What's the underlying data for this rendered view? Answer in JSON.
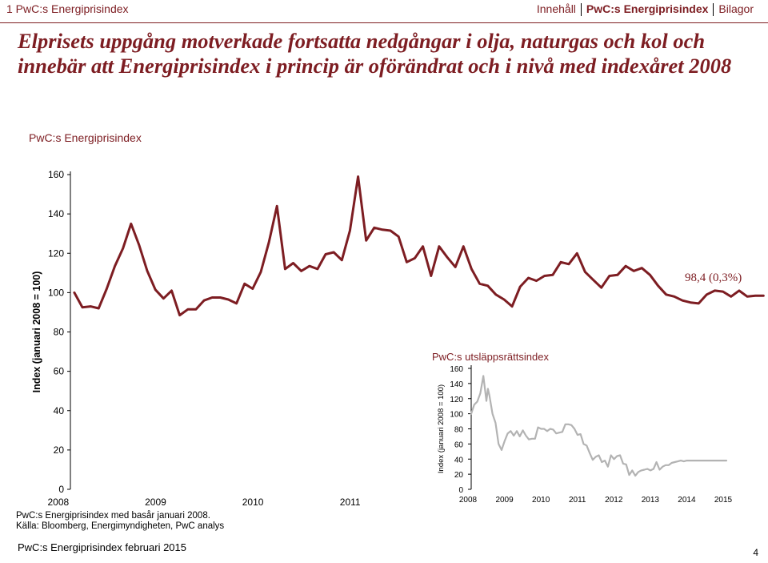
{
  "header": {
    "breadcrumb": "1 PwC:s Energiprisindex",
    "nav": [
      "Innehåll",
      "PwC:s Energiprisindex",
      "Bilagor"
    ],
    "nav_active": 1
  },
  "headline": "Elprisets uppgång motverkade fortsatta nedgångar i olja, naturgas och kol och innebär att Energiprisindex i princip är oförändrat och i nivå med indexåret 2008",
  "colors": {
    "brand": "#7d1d22",
    "inset_line": "#b3b3b3"
  },
  "chart_data": [
    {
      "type": "line",
      "title": "PwC:s Energiprisindex",
      "ylabel": "Index (januari 2008 = 100)",
      "ylim": [
        0,
        160
      ],
      "yticks": [
        0,
        20,
        40,
        60,
        80,
        100,
        120,
        140,
        160
      ],
      "xticks": [
        "2008",
        "2009",
        "2010",
        "2011"
      ],
      "xrange": [
        2007.96,
        2015.13
      ],
      "annotation": "98,4 (0,3%)",
      "series": [
        {
          "x": [
            2008.0,
            2008.083,
            2008.167,
            2008.25,
            2008.333,
            2008.417,
            2008.5,
            2008.583,
            2008.667,
            2008.75,
            2008.833,
            2008.917,
            2009.0,
            2009.083,
            2009.167,
            2009.25,
            2009.333,
            2009.417,
            2009.5,
            2009.583,
            2009.667,
            2009.75,
            2009.833,
            2009.917,
            2010.0,
            2010.083,
            2010.167,
            2010.25,
            2010.333,
            2010.417,
            2010.5,
            2010.583,
            2010.667,
            2010.75,
            2010.833,
            2010.917,
            2011.0,
            2011.083,
            2011.167,
            2011.25,
            2011.333,
            2011.417,
            2011.5,
            2011.583,
            2011.667,
            2011.75,
            2011.833,
            2011.917,
            2012.0,
            2012.083,
            2012.167,
            2012.25,
            2012.333,
            2012.417,
            2012.5,
            2012.583,
            2012.667,
            2012.75,
            2012.833,
            2012.917,
            2013.0,
            2013.083,
            2013.167,
            2013.25,
            2013.333,
            2013.417,
            2013.5,
            2013.583,
            2013.667,
            2013.75,
            2013.833,
            2013.917,
            2014.0,
            2014.083,
            2014.167,
            2014.25,
            2014.333,
            2014.417,
            2014.5,
            2014.583,
            2014.667,
            2014.75,
            2014.833,
            2014.917,
            2015.0,
            2015.083
          ],
          "values": [
            100,
            92.5,
            93,
            92,
            102,
            113.5,
            122.5,
            135,
            124,
            111,
            101.5,
            97,
            101,
            88.5,
            91.5,
            91.5,
            96,
            97.5,
            97.5,
            96.5,
            94.5,
            104.5,
            102,
            110.5,
            125.5,
            144,
            112,
            115,
            111,
            113.5,
            112,
            119.5,
            120.5,
            116.5,
            131.5,
            159,
            126.5,
            133,
            132,
            131.5,
            128.5,
            115.5,
            117.5,
            123.5,
            108.5,
            123.5,
            118,
            113,
            123.5,
            112,
            104.5,
            103.5,
            99,
            96.5,
            93,
            103,
            107.5,
            106,
            108.5,
            109,
            115.5,
            114.5,
            120,
            110.5,
            106.5,
            102.5,
            108.5,
            109,
            113.5,
            111,
            112.5,
            109,
            103.5,
            99,
            98,
            96,
            95,
            94.5,
            99,
            101,
            100.5,
            98,
            101,
            98,
            98.4,
            98.4
          ]
        }
      ]
    },
    {
      "type": "line",
      "title": "PwC:s utsläppsrättsindex",
      "ylabel": "Index (januari 2008 = 100)",
      "ylim": [
        0,
        160
      ],
      "yticks": [
        0,
        20,
        40,
        60,
        80,
        100,
        120,
        140,
        160
      ],
      "xticks": [
        "2008",
        "2009",
        "2010",
        "2011",
        "2012",
        "2013",
        "2014",
        "2015"
      ],
      "xrange": [
        2008.0,
        2015.0
      ],
      "series": [
        {
          "x": [
            2008.0,
            2008.083,
            2008.167,
            2008.25,
            2008.333,
            2008.417,
            2008.458,
            2008.5,
            2008.583,
            2008.667,
            2008.75,
            2008.833,
            2008.917,
            2009.0,
            2009.083,
            2009.167,
            2009.25,
            2009.333,
            2009.417,
            2009.5,
            2009.583,
            2009.667,
            2009.75,
            2009.833,
            2009.917,
            2010.0,
            2010.083,
            2010.167,
            2010.25,
            2010.333,
            2010.417,
            2010.5,
            2010.583,
            2010.667,
            2010.75,
            2010.833,
            2010.917,
            2011.0,
            2011.083,
            2011.167,
            2011.25,
            2011.333,
            2011.417,
            2011.5,
            2011.583,
            2011.667,
            2011.75,
            2011.833,
            2011.917,
            2012.0,
            2012.083,
            2012.167,
            2012.25,
            2012.333,
            2012.417,
            2012.5,
            2012.583,
            2012.667,
            2012.75,
            2012.833,
            2012.917,
            2013.0,
            2013.083,
            2013.167,
            2013.25,
            2013.333,
            2013.417,
            2013.5,
            2013.583,
            2013.667,
            2013.75,
            2013.833,
            2013.917,
            2014.0,
            2014.083,
            2014.167,
            2014.25,
            2014.333,
            2014.417,
            2014.5,
            2014.583,
            2014.667,
            2014.75,
            2014.833,
            2014.917,
            2015.0
          ],
          "values": [
            100,
            112,
            116,
            127,
            150,
            117,
            133,
            124,
            100,
            88,
            60,
            52,
            64,
            74,
            77,
            71,
            77,
            70,
            78,
            71,
            66,
            67,
            67,
            82,
            80,
            80,
            77,
            80,
            79,
            74,
            75,
            76,
            86,
            86,
            85,
            80,
            72,
            73,
            60,
            58,
            48,
            39,
            43,
            45,
            36,
            38,
            30,
            45,
            40,
            44,
            45,
            34,
            33,
            19,
            25,
            18,
            23,
            25,
            26,
            27,
            25,
            27,
            36,
            26,
            30,
            32,
            32,
            35,
            36,
            37,
            38,
            37,
            38,
            38,
            38,
            38,
            38,
            38,
            38,
            38,
            38,
            38,
            38,
            38,
            38,
            38
          ]
        }
      ]
    }
  ],
  "notes": [
    "PwC:s Energiprisindex med basår januari 2008.",
    "Källa: Bloomberg, Energimyndigheten, PwC analys"
  ],
  "footer": "PwC:s Energiprisindex februari 2015",
  "page_number": "4"
}
